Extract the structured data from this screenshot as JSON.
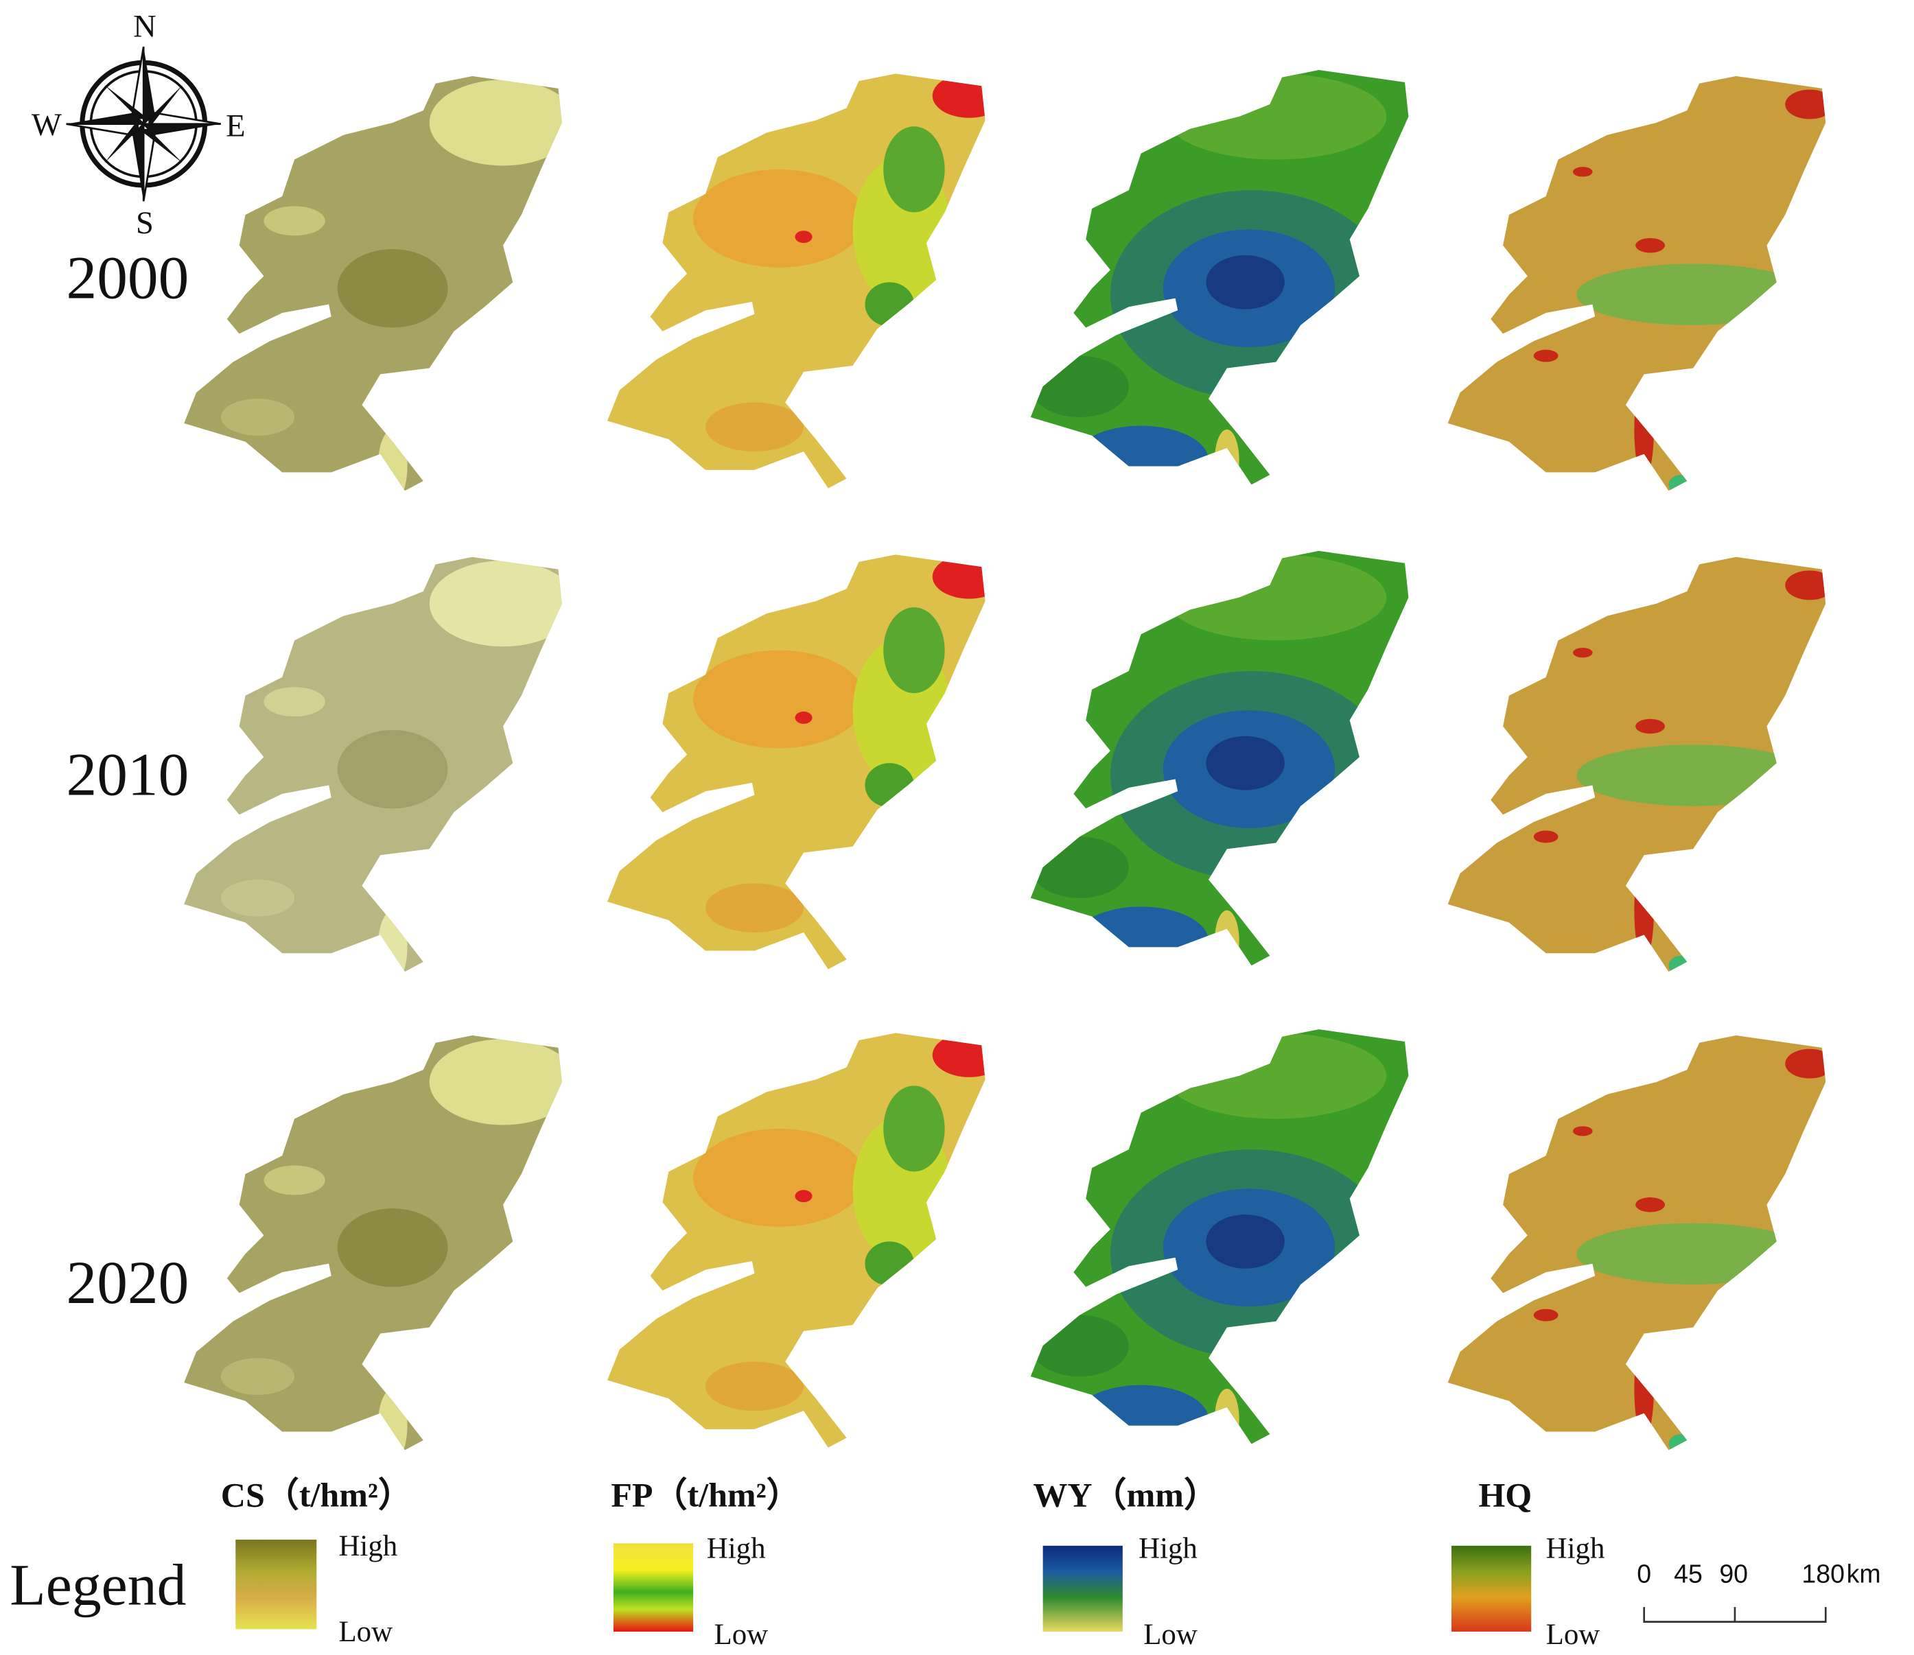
{
  "compass": {
    "north": "N",
    "south": "S",
    "east": "E",
    "west": "W"
  },
  "years": [
    "2000",
    "2010",
    "2020"
  ],
  "legend": {
    "title": "Legend",
    "items": [
      {
        "title": "CS（t/hm²）",
        "high": "High",
        "low": "Low"
      },
      {
        "title": "FP（t/hm²）",
        "high": "High",
        "low": "Low"
      },
      {
        "title": "WY（mm）",
        "high": "High",
        "low": "Low"
      },
      {
        "title": "HQ",
        "high": "High",
        "low": "Low"
      }
    ]
  },
  "scale_bar": {
    "ticks": [
      0,
      45,
      90,
      180
    ],
    "unit": "km"
  }
}
